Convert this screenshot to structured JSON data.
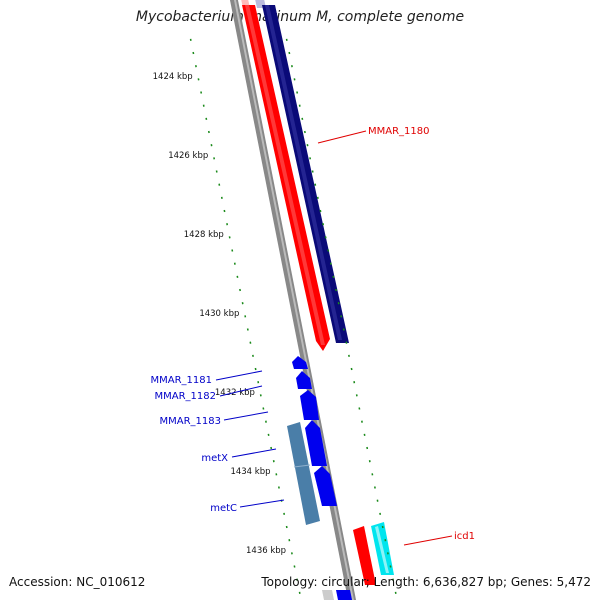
{
  "title": "Mycobacterium marinum M, complete genome",
  "footer": {
    "accession": "Accession: NC_010612",
    "summary": "Topology: circular; Length: 6,636,827 bp; Genes: 5,472"
  },
  "ticks": [
    {
      "kbp": 1424,
      "label": "1424 kbp"
    },
    {
      "kbp": 1426,
      "label": "1426 kbp"
    },
    {
      "kbp": 1428,
      "label": "1428 kbp"
    },
    {
      "kbp": 1430,
      "label": "1430 kbp"
    },
    {
      "kbp": 1432,
      "label": "1432 kbp"
    },
    {
      "kbp": 1434,
      "label": "1434 kbp"
    },
    {
      "kbp": 1436,
      "label": "1436 kbp"
    }
  ],
  "genes": [
    {
      "name": "MMAR_1180",
      "color": "#e00000"
    },
    {
      "name": "MMAR_1181",
      "color": "#0000c8"
    },
    {
      "name": "MMAR_1182",
      "color": "#0000c8"
    },
    {
      "name": "MMAR_1183",
      "color": "#0000c8"
    },
    {
      "name": "metX",
      "color": "#0000c8"
    },
    {
      "name": "metC",
      "color": "#0000c8"
    },
    {
      "name": "icd1",
      "color": "#e00000"
    }
  ],
  "colors": {
    "forward_cds": "#ff0000",
    "reverse_cds": "#0a0a78",
    "gene_blue": "#0000ee",
    "steel_blue": "#4a7ea8",
    "cyan": "#00e5ee",
    "backbone": "#888888",
    "tick": "#1a8a1a"
  }
}
